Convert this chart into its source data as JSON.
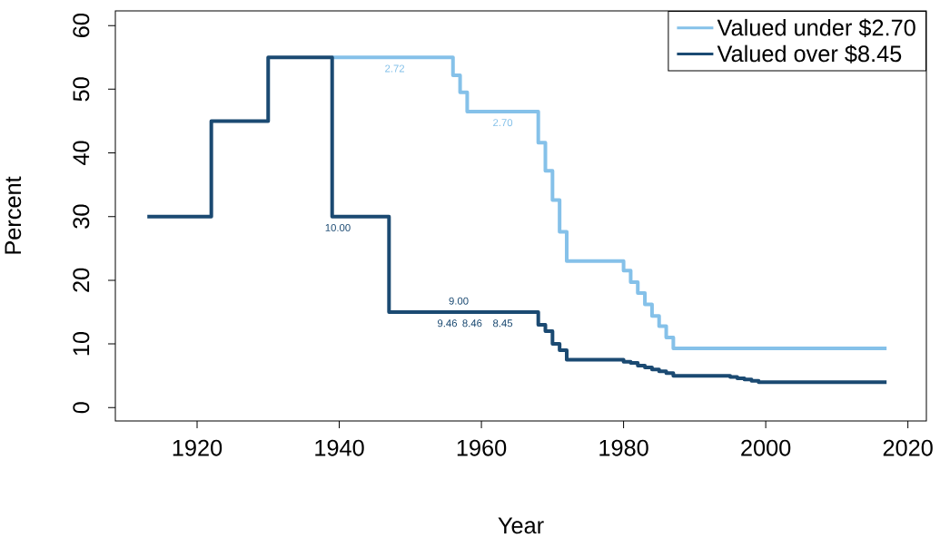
{
  "chart_data": {
    "type": "step",
    "xlabel": "Year",
    "ylabel": "Percent",
    "xlim": [
      1908.5,
      2022.6
    ],
    "ylim": [
      -2.1,
      62.3
    ],
    "xticks": [
      1920,
      1940,
      1960,
      1980,
      2000,
      2020
    ],
    "yticks": [
      0,
      10,
      20,
      30,
      40,
      50,
      60
    ],
    "legend": "top right",
    "series": [
      {
        "name": "Valued under $2.70",
        "color": "#85c1e9",
        "x": [
          1939,
          1956,
          1957,
          1958,
          1968,
          1969,
          1970,
          1971,
          1972,
          1980,
          1981,
          1982,
          1983,
          1984,
          1985,
          1986,
          1987,
          2017
        ],
        "values": [
          55,
          52.2,
          49.5,
          46.5,
          41.6,
          37.2,
          32.6,
          27.6,
          23,
          21.5,
          19.7,
          18,
          16.2,
          14.4,
          12.8,
          11,
          9.3,
          9.3
        ]
      },
      {
        "name": "Valued over $8.45",
        "color": "#1b4a72",
        "x": [
          1913,
          1922,
          1930,
          1939,
          1947,
          1968,
          1969,
          1970,
          1971,
          1972,
          1980,
          1981,
          1982,
          1983,
          1984,
          1985,
          1986,
          1987,
          1995,
          1996,
          1997,
          1998,
          1999,
          2017
        ],
        "values": [
          30,
          45,
          55,
          30,
          15,
          13,
          12,
          10,
          9,
          7.5,
          7.2,
          7,
          6.6,
          6.3,
          6,
          5.7,
          5.4,
          5,
          4.8,
          4.6,
          4.4,
          4.2,
          4,
          4
        ]
      }
    ],
    "annotations": [
      {
        "text": "2.72",
        "x": 1947.8,
        "y": 55
      },
      {
        "text": "2.70",
        "x": 1963,
        "y": 46.5
      },
      {
        "text": "10.00",
        "x": 1939.8,
        "y": 30
      },
      {
        "text": "9.46",
        "x": 1955.2,
        "y": 15
      },
      {
        "text": "8.46",
        "x": 1958.7,
        "y": 15
      },
      {
        "text": "8.45",
        "x": 1963,
        "y": 15
      },
      {
        "text": "9.00",
        "x": 1956.8,
        "y": 15
      }
    ]
  }
}
